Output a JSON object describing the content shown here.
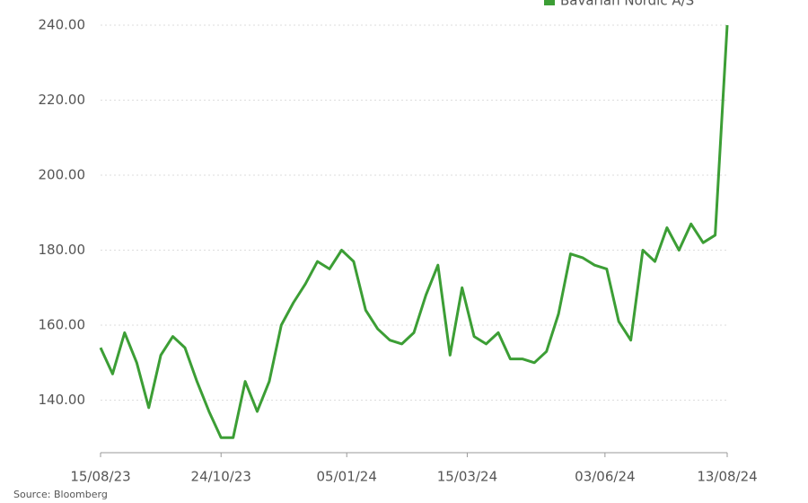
{
  "chart_data": {
    "type": "line",
    "legend": "Bavarian Nordic A/S",
    "source": "Source: Bloomberg",
    "x": [
      "15/08/23",
      "22/08/23",
      "29/08/23",
      "05/09/23",
      "12/09/23",
      "19/09/23",
      "26/09/23",
      "03/10/23",
      "10/10/23",
      "17/10/23",
      "24/10/23",
      "31/10/23",
      "07/11/23",
      "14/11/23",
      "21/11/23",
      "28/11/23",
      "05/12/23",
      "12/12/23",
      "19/12/23",
      "26/12/23",
      "02/01/24",
      "09/01/24",
      "16/01/24",
      "23/01/24",
      "30/01/24",
      "06/02/24",
      "13/02/24",
      "20/02/24",
      "27/02/24",
      "05/03/24",
      "12/03/24",
      "19/03/24",
      "26/03/24",
      "02/04/24",
      "09/04/24",
      "16/04/24",
      "23/04/24",
      "30/04/24",
      "07/05/24",
      "14/05/24",
      "21/05/24",
      "28/05/24",
      "04/06/24",
      "11/06/24",
      "18/06/24",
      "25/06/24",
      "02/07/24",
      "09/07/24",
      "16/07/24",
      "23/07/24",
      "30/07/24",
      "06/08/24",
      "13/08/24"
    ],
    "series": [
      {
        "name": "Bavarian Nordic A/S",
        "color": "#3c9e35",
        "values": [
          154,
          147,
          158,
          150,
          138,
          152,
          157,
          154,
          145,
          137,
          130,
          130,
          145,
          137,
          145,
          160,
          166,
          171,
          177,
          175,
          180,
          177,
          164,
          159,
          156,
          155,
          158,
          168,
          176,
          152,
          170,
          157,
          155,
          158,
          151,
          151,
          150,
          153,
          163,
          179,
          178,
          176,
          175,
          161,
          156,
          180,
          177,
          186,
          180,
          187,
          182,
          184,
          240
        ]
      }
    ],
    "xlim": [
      "15/08/23",
      "13/08/24"
    ],
    "xticks": [
      "15/08/23",
      "24/10/23",
      "05/01/24",
      "15/03/24",
      "03/06/24",
      "13/08/24"
    ],
    "ylim": [
      126,
      240
    ],
    "yticks": [
      {
        "value": 140,
        "label": "140.00"
      },
      {
        "value": 160,
        "label": "160.00"
      },
      {
        "value": 180,
        "label": "180.00"
      },
      {
        "value": 200,
        "label": "200.00"
      },
      {
        "value": 220,
        "label": "220.00"
      },
      {
        "value": 240,
        "label": "240.00"
      }
    ],
    "grid": true
  }
}
